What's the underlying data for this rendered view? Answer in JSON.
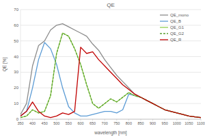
{
  "chart_data": {
    "type": "line",
    "title": "QE",
    "x_label": "wavelength [nm]",
    "y_label": "QE [%]",
    "x": [
      350,
      375,
      400,
      425,
      450,
      475,
      500,
      525,
      550,
      575,
      600,
      625,
      650,
      675,
      700,
      725,
      750,
      775,
      800,
      825,
      850,
      875,
      900,
      925,
      950,
      975,
      1000,
      1025,
      1050,
      1075,
      1100
    ],
    "series": [
      {
        "name": "QE_mono",
        "color": "#8c8c8c",
        "line_style": "solid",
        "values": [
          3,
          10,
          34,
          47,
          50,
          57,
          60,
          61,
          59,
          57,
          55,
          53,
          48,
          44,
          38,
          33,
          28,
          24,
          20,
          16,
          14,
          12,
          10,
          8,
          6,
          5,
          4,
          3,
          2,
          1.5,
          1
        ]
      },
      {
        "name": "QE_B",
        "color": "#5b9bd5",
        "line_style": "solid",
        "values": [
          2,
          5,
          20,
          38,
          49,
          45,
          35,
          20,
          8,
          4,
          2,
          2,
          3,
          4,
          5,
          5,
          4,
          6,
          16,
          15,
          14,
          12,
          10,
          8,
          6,
          5,
          4,
          3,
          2,
          1.5,
          1
        ]
      },
      {
        "name": "QE_G1",
        "color": "#92d050",
        "line_style": "solid",
        "values": [
          1,
          2,
          6,
          4,
          5,
          15,
          42,
          55,
          53,
          45,
          35,
          22,
          10,
          7,
          10,
          13,
          11,
          14,
          17,
          15,
          14,
          12,
          10,
          8,
          6,
          5,
          4,
          3,
          2,
          1.5,
          1
        ]
      },
      {
        "name": "QE_G2",
        "color": "#5a9e2f",
        "line_style": "dashed",
        "values": [
          1,
          2,
          6,
          4,
          5,
          15,
          42,
          55,
          53,
          45,
          35,
          22,
          10,
          7,
          10,
          13,
          11,
          14,
          17,
          15,
          14,
          12,
          10,
          8,
          6,
          5,
          4,
          3,
          2,
          1.5,
          1
        ]
      },
      {
        "name": "QE_R",
        "color": "#c00000",
        "line_style": "solid",
        "values": [
          2,
          5,
          11,
          5,
          2,
          1,
          2,
          4,
          3,
          5,
          46,
          42,
          43,
          38,
          34,
          30,
          26,
          22,
          19,
          16,
          14,
          12,
          10,
          8,
          6,
          5,
          4,
          3,
          2,
          1.5,
          1
        ]
      }
    ],
    "xlim": [
      350,
      1100
    ],
    "xticks": [
      350,
      400,
      450,
      500,
      550,
      600,
      650,
      700,
      750,
      800,
      850,
      900,
      950,
      1000,
      1050,
      1100
    ],
    "ylim": [
      0,
      70
    ],
    "yticks": [
      0,
      10,
      20,
      30,
      40,
      50,
      60,
      70
    ],
    "grid": true,
    "legend": "upper right"
  }
}
